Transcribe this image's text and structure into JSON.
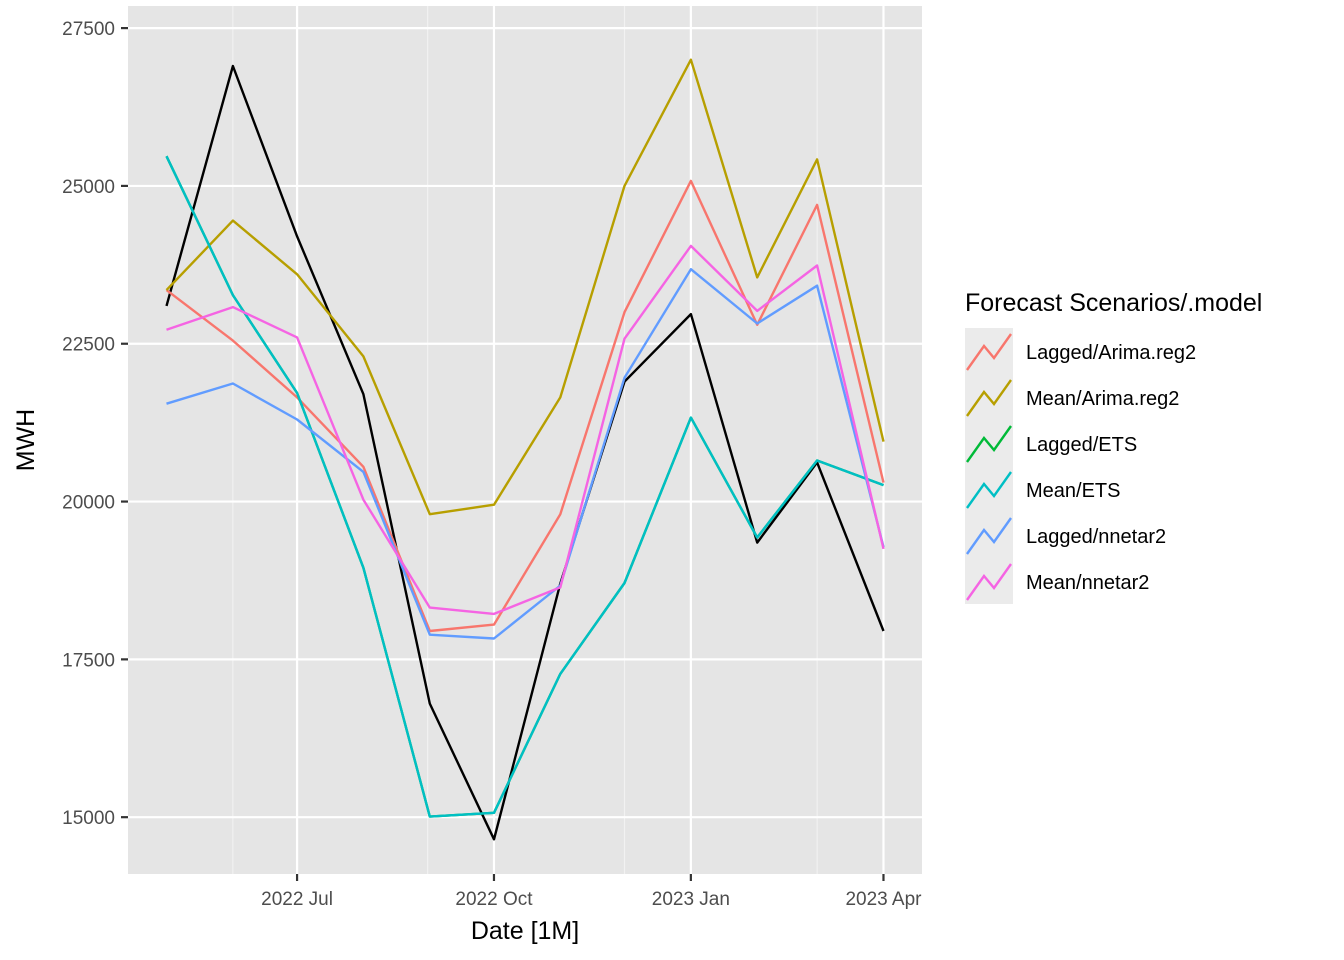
{
  "chart_data": {
    "type": "line",
    "xlabel": "Date [1M]",
    "ylabel": "MWH",
    "x": [
      "2022-05",
      "2022-06",
      "2022-07",
      "2022-08",
      "2022-09",
      "2022-10",
      "2022-11",
      "2022-12",
      "2023-01",
      "2023-02",
      "2023-03",
      "2023-04"
    ],
    "x_ticks": [
      {
        "date": "2022-07",
        "label": "2022 Jul"
      },
      {
        "date": "2022-10",
        "label": "2022 Oct"
      },
      {
        "date": "2023-01",
        "label": "2023 Jan"
      },
      {
        "date": "2023-04",
        "label": "2023 Apr"
      }
    ],
    "x_minor_ticks": [
      "2022-06-01",
      "2022-08-31",
      "2022-12-01",
      "2023-03-01"
    ],
    "xlim": [
      "2022-04-13",
      "2023-04-19"
    ],
    "y_ticks": [
      15000,
      17500,
      20000,
      22500,
      25000,
      27500
    ],
    "y_tick_labels": [
      "15000",
      "17500",
      "20000",
      "22500",
      "25000",
      "27500"
    ],
    "ylim": [
      14100,
      27850
    ],
    "grid": true,
    "background": "#e5e5e5",
    "legend": {
      "title": "Forecast Scenarios/.model",
      "position": "right"
    },
    "actual": {
      "color": "#000000",
      "values": [
        23100,
        26900,
        24200,
        21700,
        16800,
        14650,
        18700,
        21900,
        22970,
        19350,
        20620,
        17950
      ]
    },
    "series": [
      {
        "name": "Lagged/Arima.reg2",
        "color": "#F8766D",
        "values": [
          23350,
          22550,
          21650,
          20550,
          17950,
          18050,
          19800,
          23000,
          25080,
          22800,
          24700,
          20300
        ]
      },
      {
        "name": "Mean/Arima.reg2",
        "color": "#B79F00",
        "values": [
          23350,
          24450,
          23600,
          22300,
          19800,
          19950,
          21650,
          25000,
          27000,
          23550,
          25420,
          20950
        ]
      },
      {
        "name": "Lagged/ETS",
        "color": "#00BA38",
        "values": [
          25470,
          23270,
          21720,
          18950,
          15010,
          15070,
          17270,
          18710,
          21330,
          19430,
          20650,
          20260
        ]
      },
      {
        "name": "Mean/ETS",
        "color": "#00BFC4",
        "values": [
          25470,
          23270,
          21720,
          18950,
          15010,
          15070,
          17270,
          18710,
          21330,
          19430,
          20650,
          20260
        ]
      },
      {
        "name": "Lagged/nnetar2",
        "color": "#619CFF",
        "values": [
          21550,
          21870,
          21300,
          20470,
          17890,
          17830,
          18670,
          21960,
          23680,
          22820,
          23420,
          19280
        ]
      },
      {
        "name": "Mean/nnetar2",
        "color": "#F564E3",
        "values": [
          22720,
          23080,
          22600,
          20030,
          18320,
          18220,
          18640,
          22580,
          24050,
          23020,
          23740,
          19250
        ]
      }
    ]
  }
}
